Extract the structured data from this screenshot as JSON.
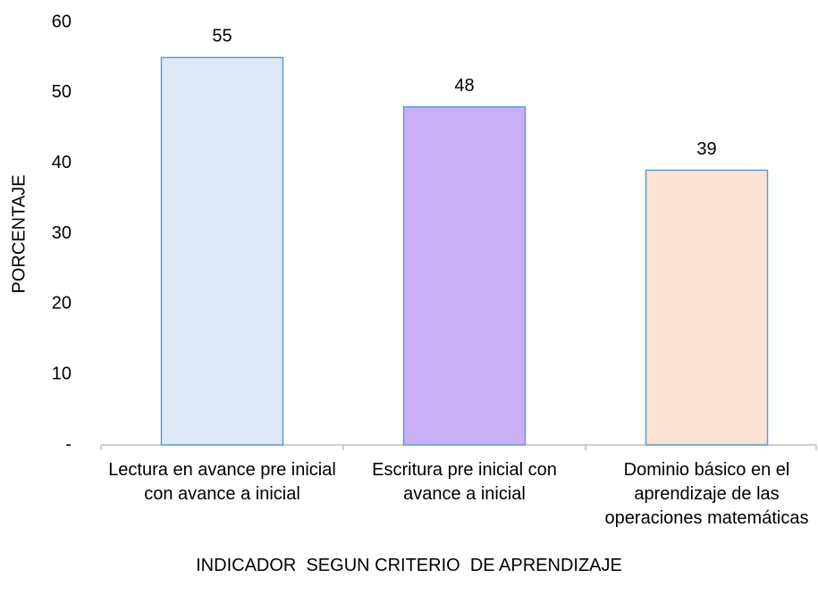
{
  "chart_data": {
    "type": "bar",
    "categories": [
      "Lectura en avance pre inicial con avance a inicial",
      "Escritura pre inicial con avance a inicial",
      "Dominio básico en el aprendizaje de las operaciones matemáticas"
    ],
    "values": [
      55,
      48,
      39
    ],
    "colors": [
      "#dde9f6",
      "#cbaff5",
      "#fbe3d4"
    ],
    "edge_color": "#5b9bd5",
    "ylim": [
      0,
      60
    ],
    "yticks": [
      {
        "value": 0,
        "label": "-"
      },
      10,
      20,
      30,
      40,
      50,
      60
    ],
    "ylabel": "PORCENTAJE",
    "xlabel": "INDICADOR  SEGUN CRITERIO  DE APRENDIZAJE",
    "grid": false
  }
}
